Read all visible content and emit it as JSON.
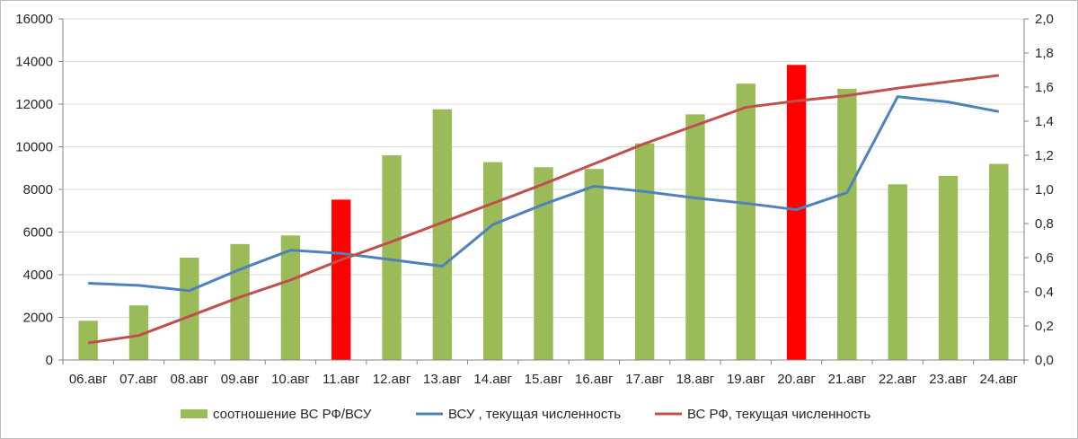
{
  "chart_data": {
    "type": "bar",
    "categories": [
      "06.авг",
      "07.авг",
      "08.авг",
      "09.авг",
      "10.авг",
      "11.авг",
      "12.авг",
      "13.авг",
      "14.авг",
      "15.авг",
      "16.авг",
      "17.авг",
      "18.авг",
      "19.авг",
      "20.авг",
      "21.авг",
      "22.авг",
      "23.авг",
      "24.авг"
    ],
    "y_left": {
      "min": 0,
      "max": 16000,
      "step": 2000,
      "tick_labels": [
        "0",
        "2000",
        "4000",
        "6000",
        "8000",
        "10000",
        "12000",
        "14000",
        "16000"
      ]
    },
    "y_right": {
      "min": 0,
      "max": 2.0,
      "step": 0.2,
      "tick_labels": [
        "0,0",
        "0,2",
        "0,4",
        "0,6",
        "0,8",
        "1,0",
        "1,2",
        "1,4",
        "1,6",
        "1,8",
        "2,0"
      ]
    },
    "grid": true,
    "legend_position": "bottom",
    "series": [
      {
        "name": "соотношение ВС РФ/ВСУ",
        "type": "bar",
        "axis": "right",
        "color": "#9bbb59",
        "highlight_color": "#ff0000",
        "highlight_indices": [
          5,
          14
        ],
        "values": [
          0.23,
          0.32,
          0.6,
          0.68,
          0.73,
          0.94,
          1.2,
          1.47,
          1.16,
          1.13,
          1.12,
          1.27,
          1.44,
          1.62,
          1.73,
          1.59,
          1.03,
          1.08,
          1.15
        ]
      },
      {
        "name": "ВСУ , текущая численность",
        "type": "line",
        "axis": "left",
        "color": "#4f81bd",
        "values": [
          3600,
          3500,
          3250,
          4250,
          5150,
          5000,
          4700,
          4400,
          6350,
          7300,
          8150,
          7900,
          7600,
          7350,
          7050,
          7850,
          12350,
          12100,
          11650
        ]
      },
      {
        "name": "ВС РФ, текущая численность",
        "type": "line",
        "axis": "left",
        "color": "#c0504d",
        "values": [
          800,
          1150,
          2050,
          2950,
          3750,
          4700,
          5550,
          6450,
          7350,
          8250,
          9200,
          10150,
          11000,
          11850,
          12150,
          12400,
          12750,
          13050,
          13350
        ]
      }
    ]
  }
}
